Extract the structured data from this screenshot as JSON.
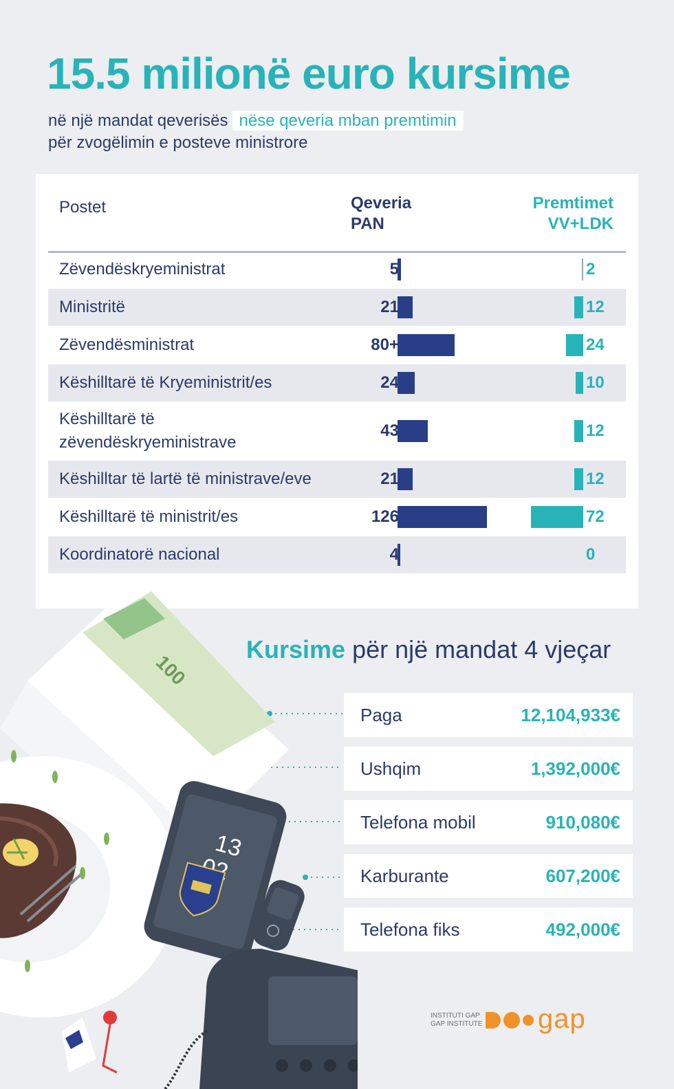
{
  "header": {
    "title": "15.5 milionë euro kursime",
    "subtitle_line1": "në një mandat qeverisës",
    "subtitle_highlight": "nëse qeveria mban premtimin",
    "subtitle_line2": "për zvogëlimin e posteve ministrore"
  },
  "table": {
    "col_postet": "Postet",
    "col_pan_1": "Qeveria",
    "col_pan_2": "PAN",
    "col_promise_1": "Premtimet",
    "col_promise_2": "VV+LDK"
  },
  "savings": {
    "title_bold": "Kursime",
    "title_rest": " për një mandat 4 vjeçar",
    "items": [
      {
        "label": "Paga",
        "amount": "12,104,933€"
      },
      {
        "label": "Ushqim",
        "amount": "1,392,000€"
      },
      {
        "label": "Telefona mobil",
        "amount": "910,080€"
      },
      {
        "label": "Karburante",
        "amount": "607,200€"
      },
      {
        "label": "Telefona fiks",
        "amount": "492,000€"
      }
    ]
  },
  "logo": {
    "line1": "INSTITUTI GAP",
    "line2": "GAP INSTITUTE",
    "name": "gap"
  },
  "illustration": {
    "banknote_value": "100",
    "phone_line1": "13",
    "phone_line2": "02"
  },
  "colors": {
    "pan": "#283e87",
    "promise": "#28b3b8",
    "text": "#2b3a6b"
  },
  "chart_data": {
    "type": "bar",
    "categories": [
      "Zëvendëskryeministrat",
      "Ministritë",
      "Zëvendësministrat",
      "Këshilltarë të Kryeministrit/es",
      "Këshilltarë të zëvendëskryeministrave",
      "Këshilltar të lartë të ministrave/eve",
      "Këshilltarë të ministrit/es",
      "Koordinatorë nacional"
    ],
    "category_lines": [
      [
        "Zëvendëskryeministrat"
      ],
      [
        "Ministritë"
      ],
      [
        "Zëvendësministrat"
      ],
      [
        "Këshilltarë të Kryeministrit/es"
      ],
      [
        "Këshilltarë të",
        "zëvendëskryeministrave"
      ],
      [
        "Këshilltar të lartë të ministrave/eve"
      ],
      [
        "Këshilltarë të ministrit/es"
      ],
      [
        "Koordinatorë nacional"
      ]
    ],
    "series": [
      {
        "name": "Qeveria PAN",
        "values": [
          5,
          21,
          80,
          24,
          43,
          21,
          126,
          4
        ],
        "labels": [
          "5",
          "21",
          "80+",
          "24",
          "43",
          "21",
          "126",
          "4"
        ]
      },
      {
        "name": "Premtimet VV+LDK",
        "values": [
          2,
          12,
          24,
          10,
          12,
          12,
          72,
          0
        ],
        "labels": [
          "2",
          "12",
          "24",
          "10",
          "12",
          "12",
          "72",
          "0"
        ]
      }
    ]
  }
}
